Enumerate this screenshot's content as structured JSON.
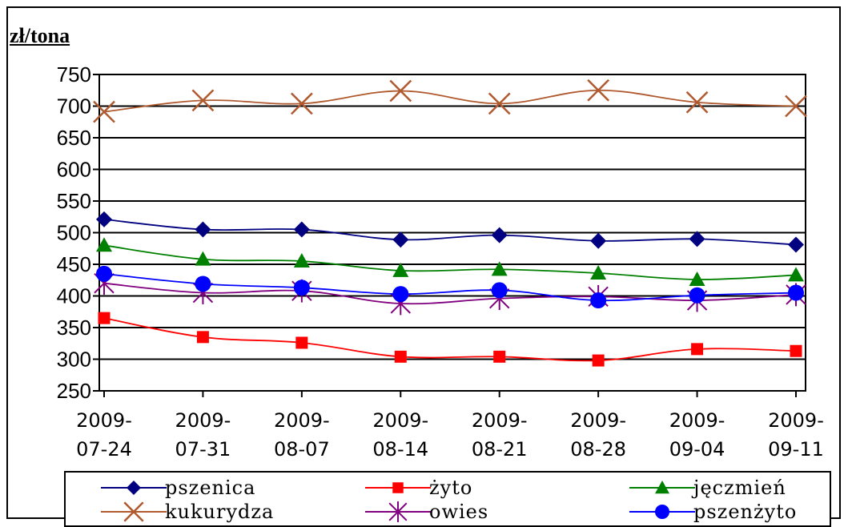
{
  "header": {
    "unit_label": "zł/tona"
  },
  "chart_data": {
    "type": "line",
    "ylabel": "zł/tona",
    "ylim": [
      250,
      750
    ],
    "yticks": [
      750,
      700,
      650,
      600,
      550,
      500,
      450,
      400,
      350,
      300,
      250
    ],
    "categories": [
      [
        "2009-",
        "07-24"
      ],
      [
        "2009-",
        "07-31"
      ],
      [
        "2009-",
        "08-07"
      ],
      [
        "2009-",
        "08-14"
      ],
      [
        "2009-",
        "08-21"
      ],
      [
        "2009-",
        "08-28"
      ],
      [
        "2009-",
        "09-04"
      ],
      [
        "2009-",
        "09-11"
      ]
    ],
    "grid": true,
    "legend_position": "bottom",
    "series": [
      {
        "name": "pszenica",
        "color": "#000080",
        "marker": "diamond",
        "values": [
          521,
          505,
          505,
          489,
          496,
          487,
          490,
          481
        ]
      },
      {
        "name": "żyto",
        "color": "#ff0000",
        "marker": "square",
        "values": [
          365,
          335,
          326,
          304,
          304,
          298,
          316,
          313
        ]
      },
      {
        "name": "jęczmień",
        "color": "#008000",
        "marker": "triangle",
        "values": [
          480,
          458,
          455,
          440,
          442,
          436,
          426,
          433
        ]
      },
      {
        "name": "kukurydza",
        "color": "#b05a30",
        "marker": "x",
        "values": [
          691,
          709,
          704,
          724,
          704,
          725,
          706,
          700
        ]
      },
      {
        "name": "owies",
        "color": "#800080",
        "marker": "star",
        "values": [
          420,
          405,
          408,
          388,
          396,
          399,
          393,
          402
        ]
      },
      {
        "name": "pszenżyto",
        "color": "#0000ff",
        "marker": "circle",
        "values": [
          435,
          419,
          413,
          403,
          409,
          393,
          401,
          405
        ]
      }
    ]
  }
}
